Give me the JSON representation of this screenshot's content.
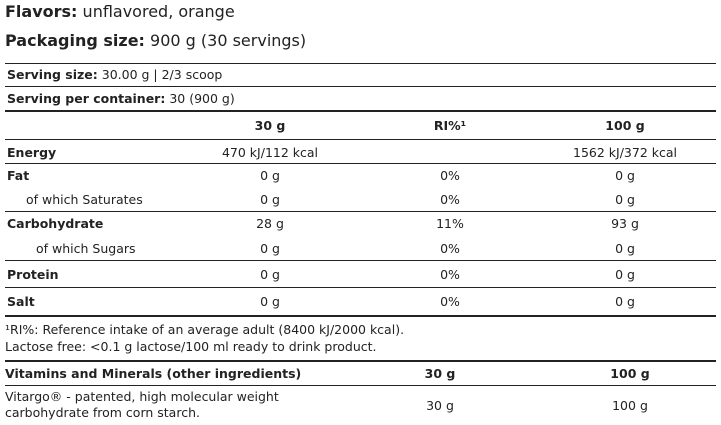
{
  "header": {
    "flavors_label": "Flavors:",
    "flavors_value": "unflavored, orange",
    "packaging_label": "Packaging size:",
    "packaging_value": "900 g (30 servings)"
  },
  "serving": {
    "size_label": "Serving size:",
    "size_value": "30.00 g | 2/3 scoop",
    "per_container_label": "Serving per container:",
    "per_container_value": "30 (900 g)"
  },
  "nutrition": {
    "columns": [
      "30 g",
      "RI%¹",
      "100 g"
    ],
    "rows": [
      {
        "label": "Energy",
        "c1": "470 kJ/112 kcal",
        "c2": "",
        "c3": "1562 kJ/372 kcal"
      },
      {
        "label": "Fat",
        "c1": "0 g",
        "c2": "0%",
        "c3": "0 g"
      },
      {
        "label": "of which Saturates",
        "c1": "0 g",
        "c2": "0%",
        "c3": "0 g"
      },
      {
        "label": "Carbohydrate",
        "c1": "28 g",
        "c2": "11%",
        "c3": "93 g"
      },
      {
        "label": "of which Sugars",
        "c1": "0 g",
        "c2": "0%",
        "c3": "0 g"
      },
      {
        "label": "Protein",
        "c1": "0 g",
        "c2": "0%",
        "c3": "0 g"
      },
      {
        "label": "Salt",
        "c1": "0 g",
        "c2": "0%",
        "c3": "0 g"
      }
    ]
  },
  "footnotes": {
    "ri_note": "¹RI%: Reference intake of an average adult (8400 kJ/2000 kcal).",
    "lactose_note": "Lactose free: <0.1 g lactose/100 ml ready to drink product."
  },
  "vitamins": {
    "header_label": "Vitamins and Minerals (other ingredients)",
    "col1": "30 g",
    "col2": "100 g",
    "row_label_line1": "Vitargo® - patented, high molecular weight",
    "row_label_line2": "carbohydrate from corn starch.",
    "row_c1": "30 g",
    "row_c2": "100 g"
  }
}
